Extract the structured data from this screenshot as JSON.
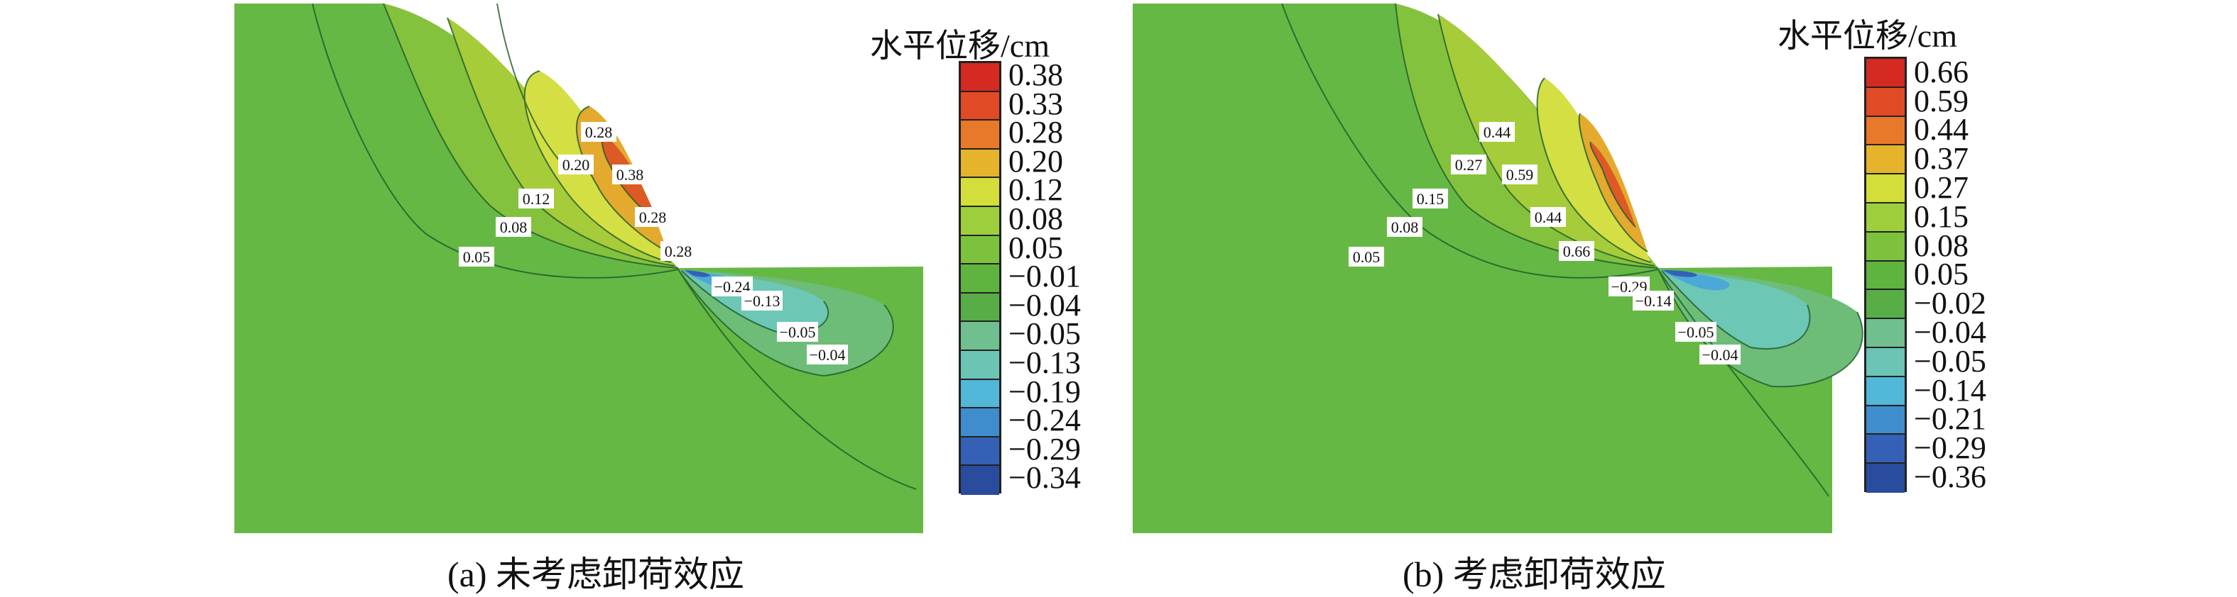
{
  "panels": [
    {
      "legend_title": "水平位移/cm",
      "legend_values": [
        "0.38",
        "0.33",
        "0.28",
        "0.20",
        "0.12",
        "0.08",
        "0.05",
        "−0.01",
        "−0.04",
        "−0.05",
        "−0.13",
        "−0.19",
        "−0.24",
        "−0.29",
        "−0.34"
      ],
      "contour_labels": [
        "0.28",
        "0.20",
        "0.38",
        "0.12",
        "0.28",
        "0.08",
        "0.28",
        "0.05",
        "−0.24",
        "−0.13",
        "−0.05",
        "−0.04"
      ],
      "caption": "(a) 未考虑卸荷效应"
    },
    {
      "legend_title": "水平位移/cm",
      "legend_values": [
        "0.66",
        "0.59",
        "0.44",
        "0.37",
        "0.27",
        "0.15",
        "0.08",
        "0.05",
        "−0.02",
        "−0.04",
        "−0.05",
        "−0.14",
        "−0.21",
        "−0.29",
        "−0.36"
      ],
      "contour_labels": [
        "0.44",
        "0.27",
        "0.59",
        "0.15",
        "0.44",
        "0.08",
        "0.66",
        "0.05",
        "−0.29",
        "−0.14",
        "−0.05",
        "−0.04"
      ],
      "caption": "(b) 考虑卸荷效应"
    }
  ],
  "legend_colors": [
    "#d42a22",
    "#e04a25",
    "#e8782a",
    "#e6b32c",
    "#d3de3a",
    "#9dcf3c",
    "#7cc23d",
    "#5fb43f",
    "#58ad47",
    "#6fbf8f",
    "#6cc4b5",
    "#52b7d8",
    "#3f8dcc",
    "#3461b5",
    "#2a4c9e"
  ],
  "colors": {
    "base_green": "#66b844",
    "zone_008": "#84c23e",
    "zone_012": "#a6cc3a",
    "zone_020": "#d4df44",
    "zone_028": "#e4aa2e",
    "zone_038": "#dd5a25",
    "zone_neg004": "#6dbd78",
    "zone_neg013": "#6cc7b5",
    "zone_neg024": "#4ba8d8",
    "zone_neg029": "#3461b5"
  }
}
